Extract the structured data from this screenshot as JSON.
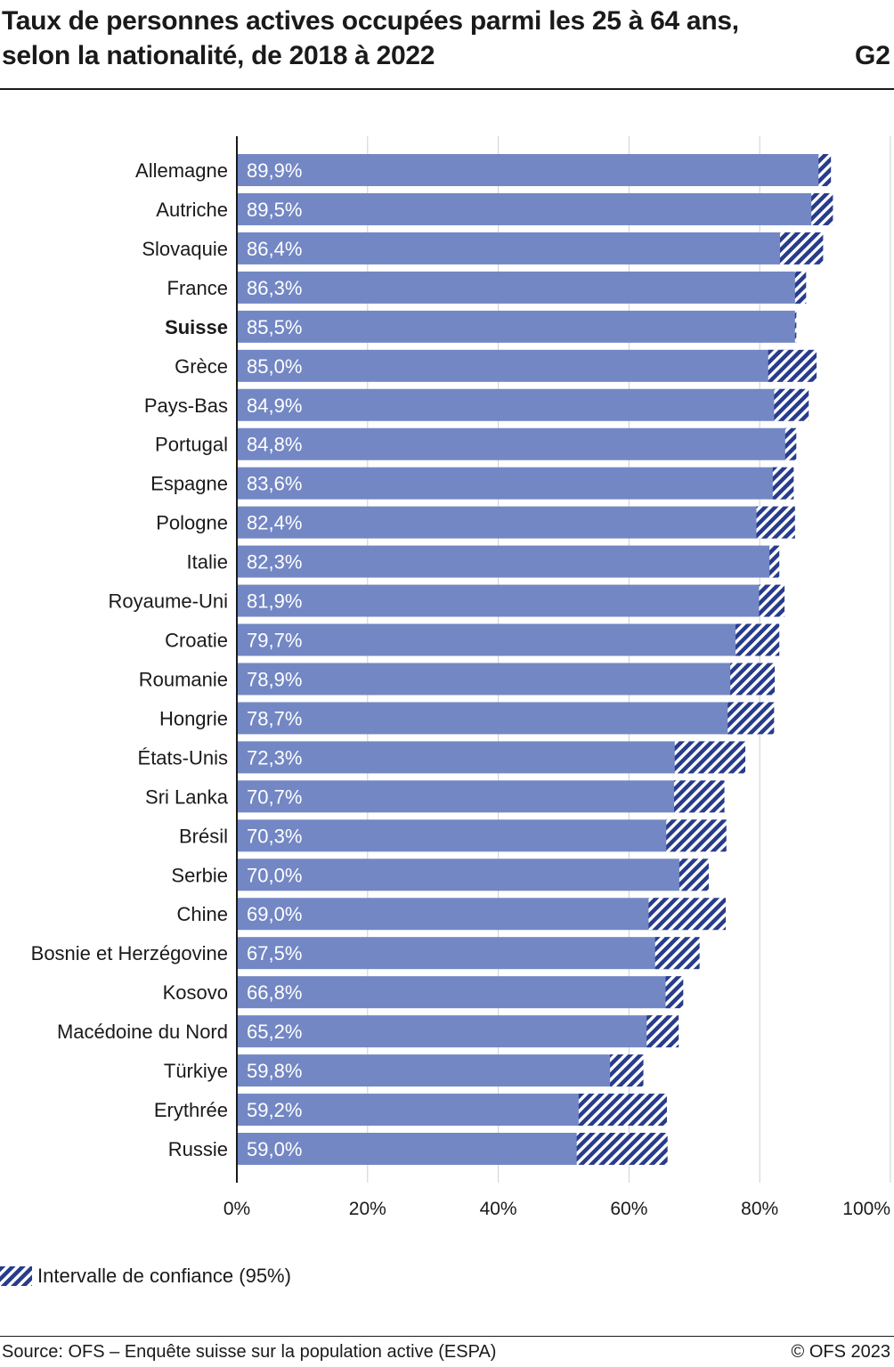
{
  "title": "Taux de personnes actives occupées parmi les 25 à 64 ans, selon la nationalité, de 2018 à 2022",
  "figure_id": "G2",
  "legend_label": "Intervalle de confiance (95%)",
  "source": "Source: OFS – Enquête suisse sur la population active (ESPA)",
  "copyright": "© OFS 2023",
  "colors": {
    "bar": "#7387c4",
    "hatch": "#283c8c",
    "axis": "#1a1a1a",
    "grid": "#cfcfcf"
  },
  "chart_data": {
    "type": "bar",
    "orientation": "horizontal",
    "xlim": [
      0,
      100
    ],
    "ticks": [
      "0%",
      "20%",
      "40%",
      "60%",
      "80%",
      "100%"
    ],
    "grid": true,
    "highlighted_category": "Suisse",
    "categories": [
      "Allemagne",
      "Autriche",
      "Slovaquie",
      "France",
      "Suisse",
      "Grèce",
      "Pays-Bas",
      "Portugal",
      "Espagne",
      "Pologne",
      "Italie",
      "Royaume-Uni",
      "Croatie",
      "Roumanie",
      "Hongrie",
      "États-Unis",
      "Sri Lanka",
      "Brésil",
      "Serbie",
      "Chine",
      "Bosnie et Herzégovine",
      "Kosovo",
      "Macédoine du Nord",
      "Türkiye",
      "Erythrée",
      "Russie"
    ],
    "values": [
      89.9,
      89.5,
      86.4,
      86.3,
      85.5,
      85.0,
      84.9,
      84.8,
      83.6,
      82.4,
      82.3,
      81.9,
      79.7,
      78.9,
      78.7,
      72.3,
      70.7,
      70.3,
      70.0,
      69.0,
      67.5,
      66.8,
      65.2,
      59.8,
      59.2,
      59.0
    ],
    "value_labels": [
      "89,9%",
      "89,5%",
      "86,4%",
      "86,3%",
      "85,5%",
      "85,0%",
      "84,9%",
      "84,8%",
      "83,6%",
      "82,4%",
      "82,3%",
      "81,9%",
      "79,7%",
      "78,9%",
      "78,7%",
      "72,3%",
      "70,7%",
      "70,3%",
      "70,0%",
      "69,0%",
      "67,5%",
      "66,8%",
      "65,2%",
      "59,8%",
      "59,2%",
      "59,0%"
    ],
    "ci_low": [
      89.0,
      87.9,
      83.1,
      85.4,
      85.4,
      81.3,
      82.2,
      83.9,
      82.0,
      79.5,
      81.5,
      79.9,
      76.3,
      75.5,
      75.1,
      67.0,
      66.9,
      65.7,
      67.7,
      63.0,
      64.0,
      65.6,
      62.7,
      57.1,
      52.3,
      52.0
    ],
    "ci_high": [
      90.9,
      91.2,
      89.7,
      87.1,
      85.6,
      88.7,
      87.5,
      85.6,
      85.2,
      85.4,
      83.0,
      83.8,
      83.0,
      82.3,
      82.2,
      77.8,
      74.6,
      74.9,
      72.2,
      74.8,
      70.8,
      68.3,
      67.6,
      62.2,
      65.8,
      65.9
    ]
  }
}
